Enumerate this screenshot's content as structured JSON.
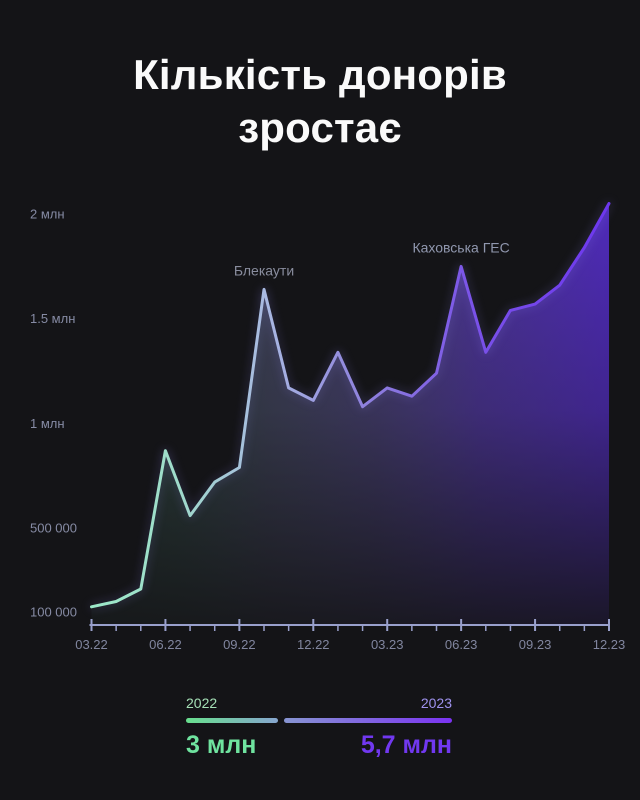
{
  "page": {
    "title": "Кількість донорів зростає",
    "background": "#141417"
  },
  "chart_data": {
    "type": "area",
    "title": "Кількість донорів зростає",
    "months": [
      "03.22",
      "04.22",
      "05.22",
      "06.22",
      "07.22",
      "08.22",
      "09.22",
      "10.22",
      "11.22",
      "12.22",
      "01.23",
      "02.23",
      "03.23",
      "04.23",
      "05.23",
      "06.23",
      "07.23",
      "08.23",
      "09.23",
      "10.23",
      "11.23",
      "12.23"
    ],
    "values": [
      125000,
      150000,
      210000,
      870000,
      560000,
      720000,
      790000,
      1640000,
      1170000,
      1110000,
      1340000,
      1080000,
      1170000,
      1130000,
      1240000,
      1750000,
      1340000,
      1540000,
      1570000,
      1660000,
      1840000,
      2050000
    ],
    "y_ticks": [
      {
        "value": 2000000,
        "label": "2 млн"
      },
      {
        "value": 1500000,
        "label": "1.5 млн"
      },
      {
        "value": 1000000,
        "label": "1 млн"
      },
      {
        "value": 500000,
        "label": "500 000"
      },
      {
        "value": 100000,
        "label": "100 000"
      }
    ],
    "x_tick_labels": [
      "03.22",
      "06.22",
      "09.22",
      "12.22",
      "03.23",
      "06.23",
      "09.23",
      "12.23"
    ],
    "annotations": [
      {
        "label": "Блекаути",
        "month": "10.22",
        "value": 1640000,
        "color": "#898d9e"
      },
      {
        "label": "Каховська ГЕС",
        "month": "06.23",
        "value": 1750000,
        "color": "#9097ae"
      }
    ],
    "ylim": [
      0,
      2100000
    ],
    "grid": false,
    "legend_position": "bottom",
    "axis_color": "#99a0cc",
    "tick_label_color": "#81869f",
    "y_label_color": "#868ba4",
    "line_gradient": [
      {
        "offset": 0,
        "color": "#9ce9c9"
      },
      {
        "offset": 0.16,
        "color": "#9fdcca"
      },
      {
        "offset": 0.34,
        "color": "#a9b8e2"
      },
      {
        "offset": 0.52,
        "color": "#8f83dd"
      },
      {
        "offset": 0.74,
        "color": "#7a52e8"
      },
      {
        "offset": 1,
        "color": "#6d37ee"
      }
    ],
    "area_gradient": [
      {
        "offset": 0,
        "color": "#7fd9b4",
        "opacity": 0.22
      },
      {
        "offset": 0.16,
        "color": "#7fd4bc",
        "opacity": 0.26
      },
      {
        "offset": 0.34,
        "color": "#8b95cf",
        "opacity": 0.36
      },
      {
        "offset": 0.55,
        "color": "#7e6ed8",
        "opacity": 0.48
      },
      {
        "offset": 0.75,
        "color": "#6b46e0",
        "opacity": 0.66
      },
      {
        "offset": 1,
        "color": "#5f31e6",
        "opacity": 0.8
      }
    ]
  },
  "legend": {
    "items": [
      {
        "year": "2022",
        "year_color": "#a5e0b6",
        "total": "3 млн",
        "total_color": "#6fe39f",
        "bar_gradient": [
          "#68df8e",
          "#87a6cf"
        ]
      },
      {
        "year": "2023",
        "year_color": "#9f92ee",
        "total": "5,7 млн",
        "total_color": "#7138f0",
        "bar_gradient": [
          "#8795d2",
          "#7b33f2"
        ]
      }
    ]
  }
}
